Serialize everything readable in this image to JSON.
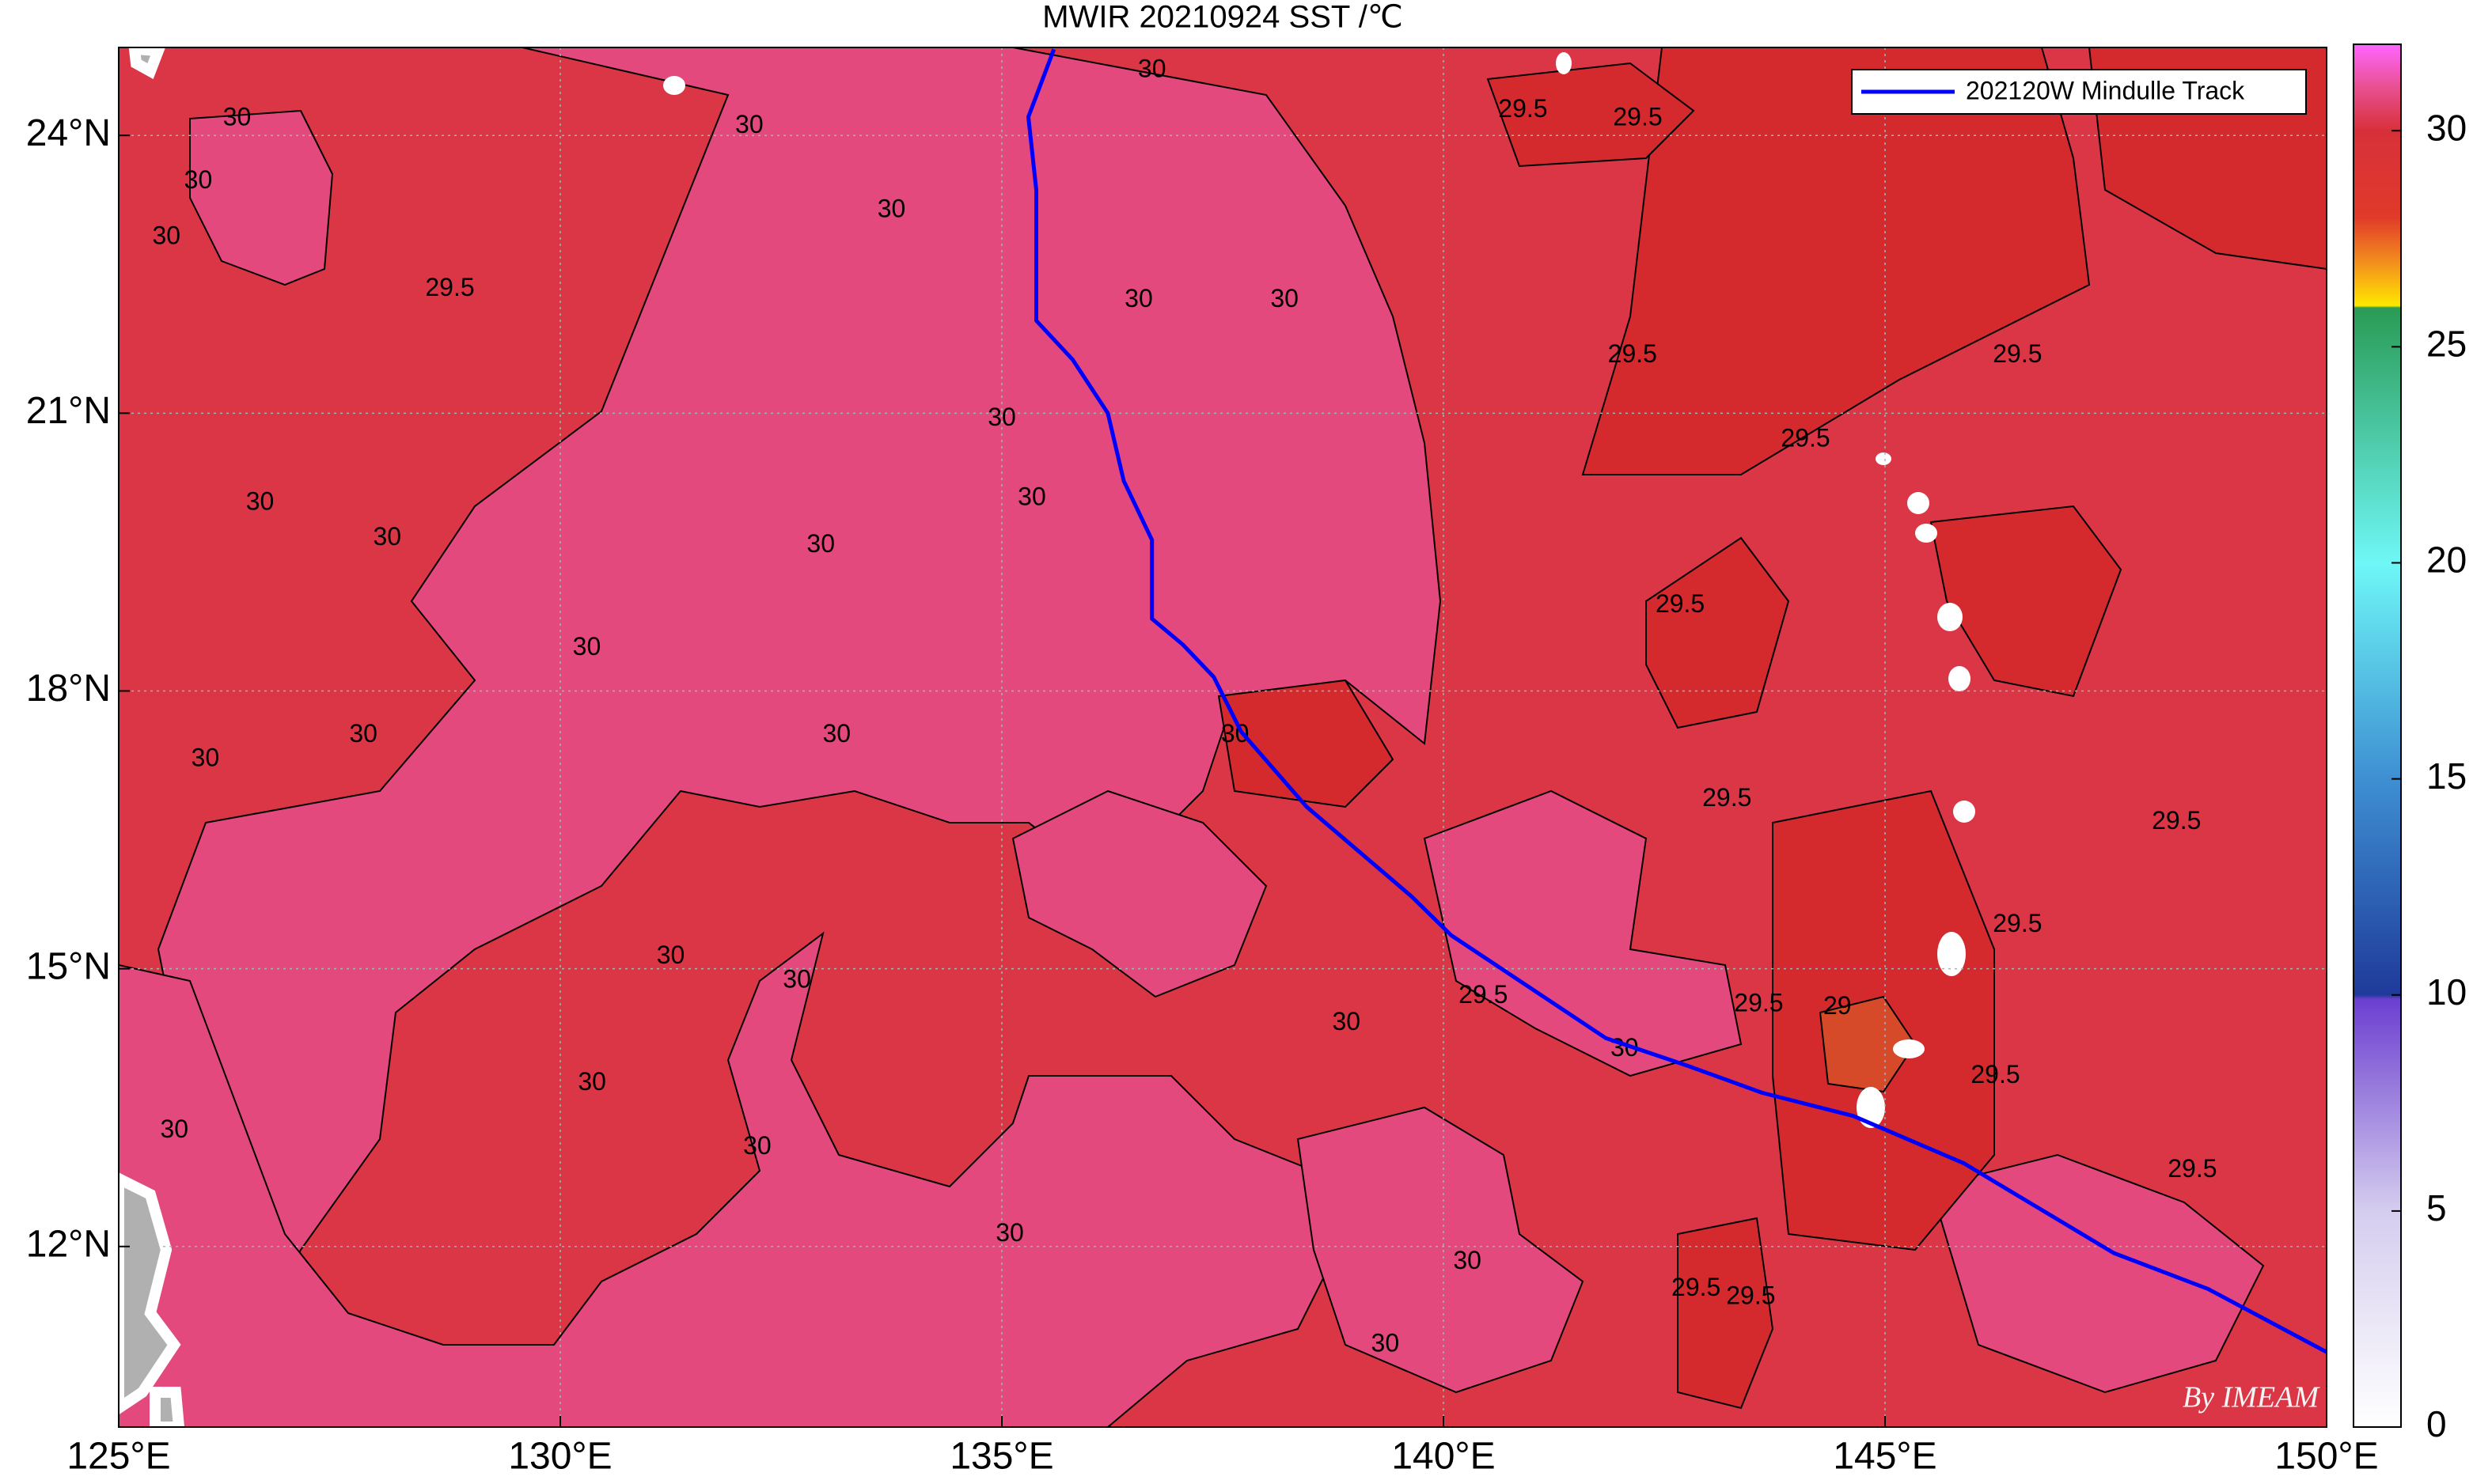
{
  "chart_data": {
    "type": "map",
    "title": "MWIR 20210924 SST /℃",
    "xlim": [
      125,
      150
    ],
    "ylim": [
      10.05,
      24.95
    ],
    "xticks": [
      {
        "value": 125,
        "label": "125°E"
      },
      {
        "value": 130,
        "label": "130°E"
      },
      {
        "value": 135,
        "label": "135°E"
      },
      {
        "value": 140,
        "label": "140°E"
      },
      {
        "value": 145,
        "label": "145°E"
      },
      {
        "value": 150,
        "label": "150°E"
      }
    ],
    "yticks": [
      {
        "value": 12,
        "label": "12°N"
      },
      {
        "value": 15,
        "label": "15°N"
      },
      {
        "value": 18,
        "label": "18°N"
      },
      {
        "value": 21,
        "label": "21°N"
      },
      {
        "value": 24,
        "label": "24°N"
      }
    ],
    "grid": true,
    "legend": "upper right",
    "track": {
      "name": "202120W Mindulle Track",
      "color": "#0000ff",
      "lon": [
        135.59,
        135.3,
        135.39,
        135.39,
        135.8,
        136.2,
        136.38,
        136.7,
        136.7,
        137.05,
        137.4,
        137.71,
        138.45,
        139.64,
        140.09,
        141.84,
        142.77,
        143.61,
        144.64,
        145.89,
        147.59,
        148.66,
        150.0
      ],
      "lat": [
        24.93,
        24.2,
        23.41,
        22.0,
        21.58,
        21.0,
        20.27,
        19.63,
        18.78,
        18.5,
        18.15,
        17.56,
        16.75,
        15.78,
        15.36,
        14.25,
        13.95,
        13.66,
        13.41,
        12.9,
        11.93,
        11.54,
        10.86
      ]
    },
    "contour_labels": [
      {
        "level": 30,
        "lon": 126.34,
        "lat": 24.18
      },
      {
        "level": 30,
        "lon": 125.9,
        "lat": 23.5
      },
      {
        "level": 30,
        "lon": 125.54,
        "lat": 22.9
      },
      {
        "level": 29.5,
        "lon": 128.75,
        "lat": 22.34
      },
      {
        "level": 30,
        "lon": 133.75,
        "lat": 23.19
      },
      {
        "level": 30,
        "lon": 132.14,
        "lat": 24.1
      },
      {
        "level": 30,
        "lon": 136.7,
        "lat": 24.7
      },
      {
        "level": 30,
        "lon": 136.55,
        "lat": 22.22
      },
      {
        "level": 30,
        "lon": 138.2,
        "lat": 22.22
      },
      {
        "level": 30,
        "lon": 135.0,
        "lat": 20.94
      },
      {
        "level": 30,
        "lon": 135.34,
        "lat": 20.08
      },
      {
        "level": 30,
        "lon": 132.95,
        "lat": 19.57
      },
      {
        "level": 30,
        "lon": 126.6,
        "lat": 20.03
      },
      {
        "level": 30,
        "lon": 128.04,
        "lat": 19.65
      },
      {
        "level": 30,
        "lon": 130.3,
        "lat": 18.46
      },
      {
        "level": 30,
        "lon": 133.13,
        "lat": 17.52
      },
      {
        "level": 30,
        "lon": 137.64,
        "lat": 17.52
      },
      {
        "level": 29.5,
        "lon": 143.21,
        "lat": 16.83
      },
      {
        "level": 29.5,
        "lon": 142.68,
        "lat": 18.92
      },
      {
        "level": 29.5,
        "lon": 144.1,
        "lat": 20.71
      },
      {
        "level": 29.5,
        "lon": 146.5,
        "lat": 21.62
      },
      {
        "level": 29.5,
        "lon": 142.14,
        "lat": 21.62
      },
      {
        "level": 29.5,
        "lon": 142.2,
        "lat": 24.18
      },
      {
        "level": 29.5,
        "lon": 140.9,
        "lat": 24.27
      },
      {
        "level": 29,
        "lon": 144.46,
        "lat": 14.58
      },
      {
        "level": 29.5,
        "lon": 143.57,
        "lat": 14.61
      },
      {
        "level": 29.5,
        "lon": 140.45,
        "lat": 14.7
      },
      {
        "level": 30,
        "lon": 138.9,
        "lat": 14.41
      },
      {
        "level": 30,
        "lon": 142.05,
        "lat": 14.13
      },
      {
        "level": 29.5,
        "lon": 146.25,
        "lat": 13.84
      },
      {
        "level": 29.5,
        "lon": 146.5,
        "lat": 15.47
      },
      {
        "level": 29.5,
        "lon": 148.48,
        "lat": 12.82
      },
      {
        "level": 29.5,
        "lon": 148.3,
        "lat": 16.58
      },
      {
        "level": 30,
        "lon": 140.27,
        "lat": 11.83
      },
      {
        "level": 30,
        "lon": 139.34,
        "lat": 10.94
      },
      {
        "level": 29.5,
        "lon": 142.86,
        "lat": 11.54
      },
      {
        "level": 29.5,
        "lon": 143.48,
        "lat": 11.45
      },
      {
        "level": 30,
        "lon": 132.68,
        "lat": 14.87
      },
      {
        "level": 30,
        "lon": 131.25,
        "lat": 15.13
      },
      {
        "level": 30,
        "lon": 130.36,
        "lat": 13.76
      },
      {
        "level": 30,
        "lon": 132.23,
        "lat": 13.07
      },
      {
        "level": 30,
        "lon": 135.09,
        "lat": 12.13
      },
      {
        "level": 30,
        "lon": 125.63,
        "lat": 13.25
      },
      {
        "level": 30,
        "lon": 127.77,
        "lat": 17.52
      },
      {
        "level": 30,
        "lon": 125.98,
        "lat": 17.26
      }
    ],
    "colorbar": {
      "lim": [
        0,
        32
      ],
      "ticks": [
        0,
        5,
        10,
        15,
        20,
        25,
        30
      ],
      "stops": [
        {
          "value": 0,
          "color": "#ffffff"
        },
        {
          "value": 5,
          "color": "#d5cdee"
        },
        {
          "value": 9.9,
          "color": "#6c3fd0"
        },
        {
          "value": 10,
          "color": "#1f3a9a"
        },
        {
          "value": 15,
          "color": "#3e8fd2"
        },
        {
          "value": 20,
          "color": "#6ff7f7"
        },
        {
          "value": 25.9,
          "color": "#2a9b55"
        },
        {
          "value": 25.95,
          "color": "#ffe800"
        },
        {
          "value": 27,
          "color": "#f28a1e"
        },
        {
          "value": 28,
          "color": "#e03a2a"
        },
        {
          "value": 30,
          "color": "#d8303a"
        },
        {
          "value": 31,
          "color": "#e85090"
        },
        {
          "value": 32,
          "color": "#ff66ff"
        }
      ]
    },
    "credit": "By IMEAM"
  }
}
